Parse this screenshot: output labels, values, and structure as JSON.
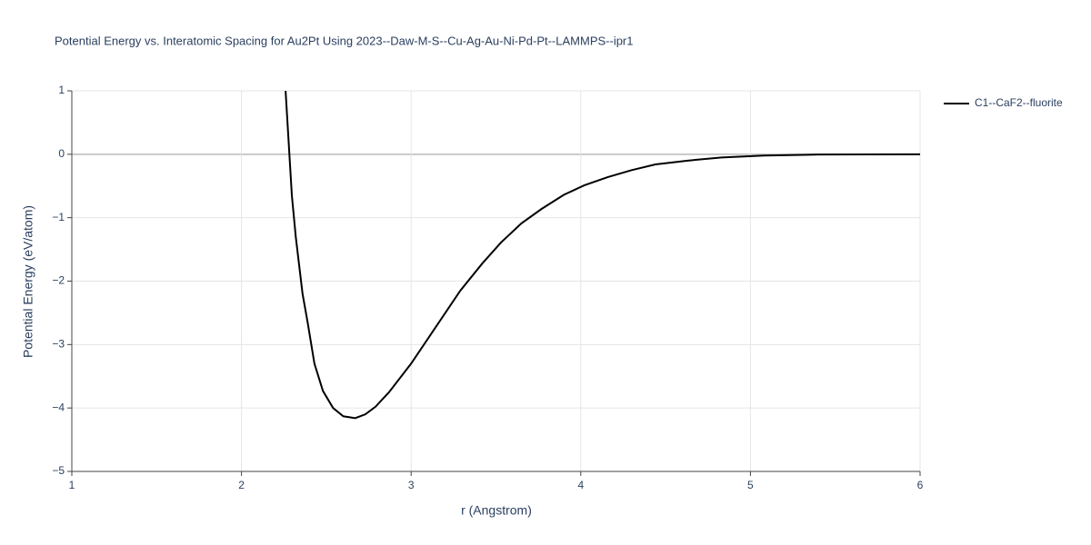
{
  "chart_data": {
    "type": "line",
    "title": "Potential Energy vs. Interatomic Spacing for Au2Pt Using 2023--Daw-M-S--Cu-Ag-Au-Ni-Pd-Pt--LAMMPS--ipr1",
    "x_label": "r (Angstrom)",
    "y_label": "Potential Energy (eV/atom)",
    "x": [
      2.26,
      2.297,
      2.32,
      2.36,
      2.39,
      2.43,
      2.48,
      2.54,
      2.6,
      2.67,
      2.73,
      2.79,
      2.87,
      3.0,
      3.29,
      3.42,
      3.53,
      3.65,
      3.77,
      3.9,
      4.02,
      4.16,
      4.3,
      4.44,
      4.63,
      4.83,
      5.08,
      5.4,
      6.0
    ],
    "series": [
      {
        "name": "C1--CaF2--fluorite",
        "color": "#000000",
        "values": [
          1.0,
          -0.65,
          -1.3,
          -2.2,
          -2.65,
          -3.3,
          -3.73,
          -4.0,
          -4.13,
          -4.16,
          -4.1,
          -3.98,
          -3.75,
          -3.3,
          -2.15,
          -1.72,
          -1.39,
          -1.09,
          -0.86,
          -0.64,
          -0.49,
          -0.36,
          -0.25,
          -0.16,
          -0.1,
          -0.05,
          -0.02,
          -0.005,
          0.0
        ]
      }
    ],
    "xlim": [
      1,
      6
    ],
    "xticks": [
      1,
      2,
      3,
      4,
      5,
      6
    ],
    "ylim": [
      -5,
      1
    ],
    "yticks": [
      {
        "value": -5,
        "label": "−5"
      },
      {
        "value": -4,
        "label": "−4"
      },
      {
        "value": -3,
        "label": "−3"
      },
      {
        "value": -2,
        "label": "−2"
      },
      {
        "value": -1,
        "label": "−1"
      },
      0,
      1
    ],
    "grid": true,
    "legend": "outside-right"
  }
}
